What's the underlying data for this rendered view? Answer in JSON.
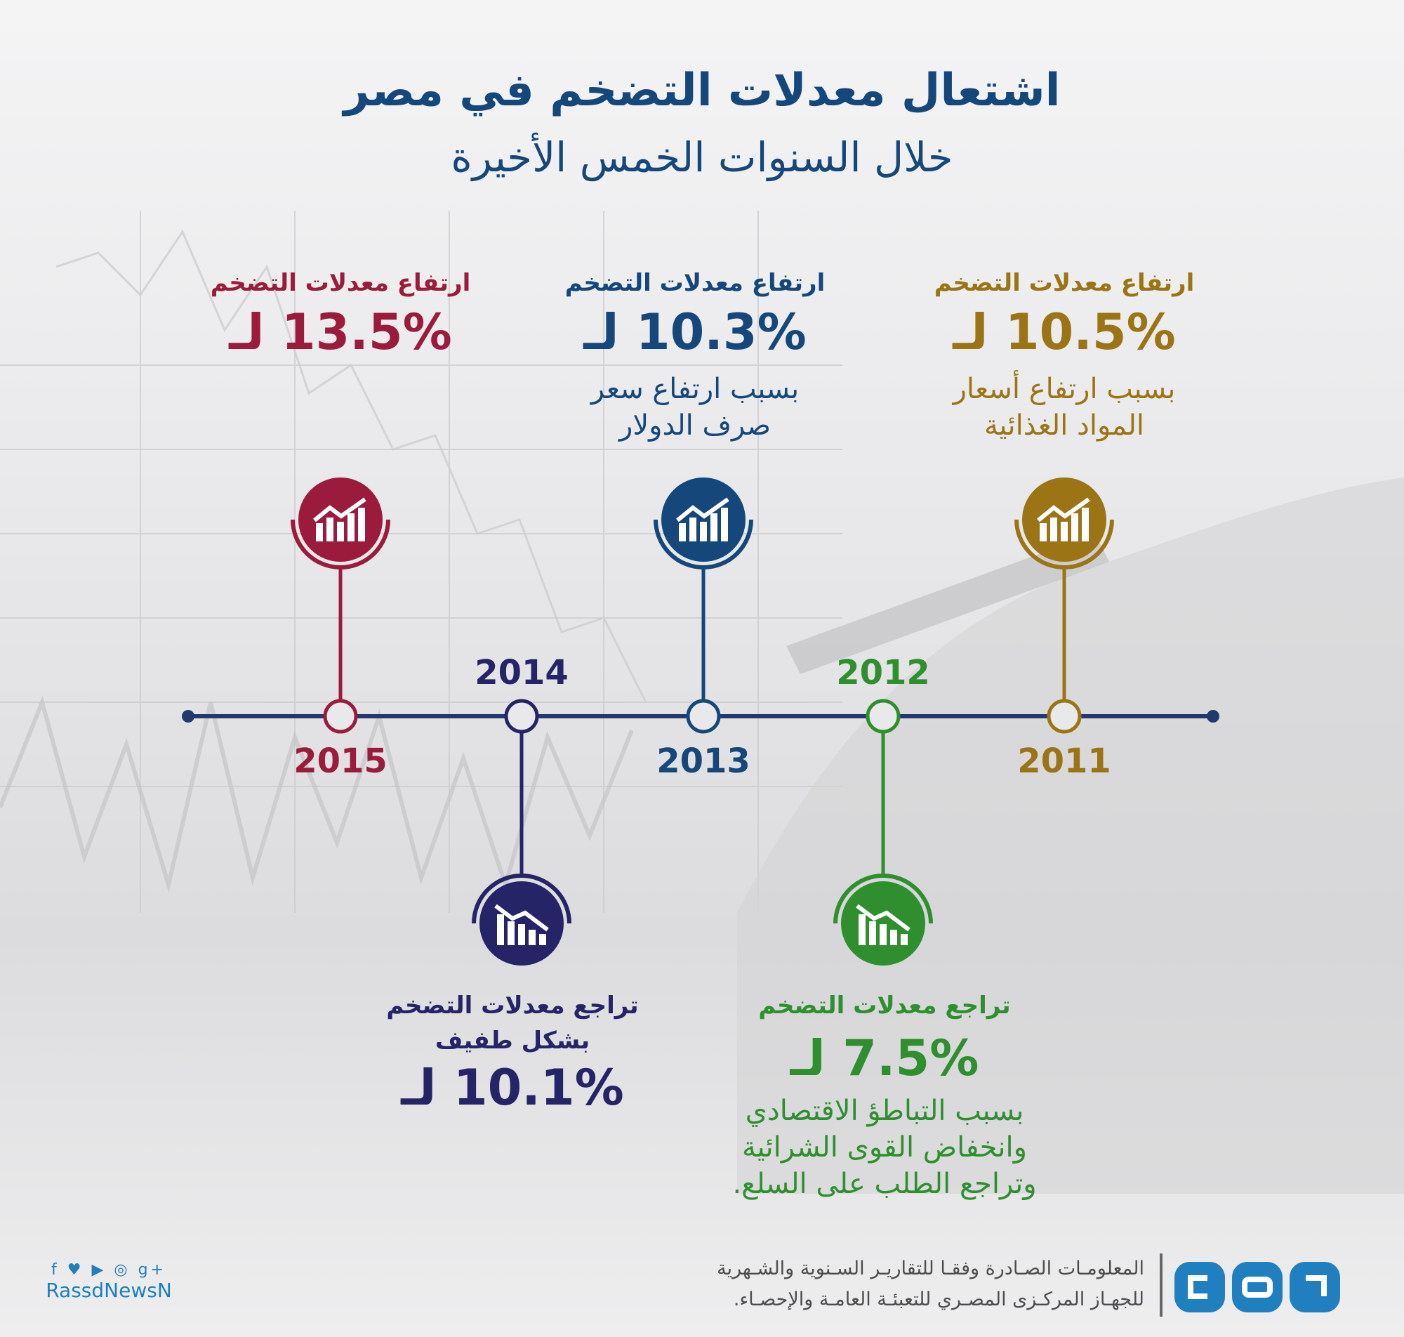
{
  "title": "اشتعال معدلات التضخم في مصر",
  "subtitle": "خلال السنوات الخمس الأخيرة",
  "colors": {
    "y2011": "#9b7415",
    "y2012": "#2f8f2f",
    "y2013": "#16477a",
    "y2014": "#242466",
    "y2015": "#9b1b3c",
    "timeline": "#213a6b"
  },
  "events": {
    "y2011": {
      "year": "2011",
      "heading": "ارتفاع معدلات التضخم",
      "rate": "10.5% لـ",
      "cause_line1": "بسبب ارتفاع أسعار",
      "cause_line2": "المواد الغذائية",
      "icon": "chart-up-icon"
    },
    "y2012": {
      "year": "2012",
      "heading": "تراجع معدلات التضخم",
      "rate": "7.5% لـ",
      "cause_line1": "بسبب التباطؤ الاقتصادي",
      "cause_line2": "وانخفاض القوى الشرائية",
      "cause_line3": "وتراجع الطلب على السلع.",
      "icon": "chart-down-icon"
    },
    "y2013": {
      "year": "2013",
      "heading": "ارتفاع معدلات التضخم",
      "rate": "10.3% لـ",
      "cause_line1": "بسبب ارتفاع سعر",
      "cause_line2": "صرف الدولار",
      "icon": "chart-up-icon"
    },
    "y2014": {
      "year": "2014",
      "heading_line1": "تراجع معدلات التضخم",
      "heading_line2": "بشكل طفيف",
      "rate": "10.1% لـ",
      "icon": "chart-down-icon"
    },
    "y2015": {
      "year": "2015",
      "heading": "ارتفاع معدلات التضخم",
      "rate": "13.5% لـ",
      "icon": "chart-up-icon"
    }
  },
  "footer": {
    "source_line1": "المعلومـات الصـادرة وفقـا للتقاريـر السـنوية والشـهرية",
    "source_line2": "للجهـاز المركـزى المصـري للتعبئـة العامـة والإحصـاء.",
    "social_icons": "f ♥ ▶ ◎ g+",
    "handle": "RassdNewsN",
    "logo": "rassd-logo"
  }
}
